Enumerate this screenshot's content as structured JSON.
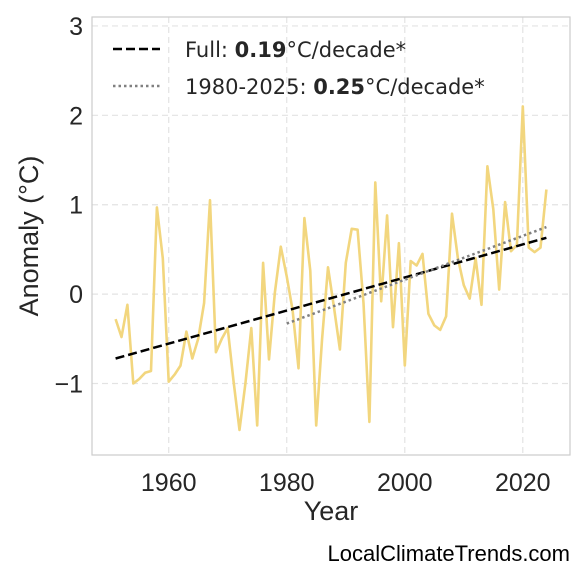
{
  "chart_data": {
    "type": "line",
    "xlabel": "Year",
    "ylabel": "Anomaly (°C)",
    "xlim": [
      1947,
      2028
    ],
    "ylim": [
      -1.8,
      3.1
    ],
    "xticks": [
      1960,
      1980,
      2000,
      2020
    ],
    "yticks": [
      3,
      2,
      1,
      0,
      -1
    ],
    "ytick_labels": [
      "3",
      "2",
      "1",
      "0",
      "−1"
    ],
    "grid": true,
    "legend_position": "top-left",
    "series": [
      {
        "kind": "data",
        "color": "#f2d67e",
        "x": [
          1951,
          1952,
          1953,
          1954,
          1955,
          1956,
          1957,
          1958,
          1959,
          1960,
          1961,
          1962,
          1963,
          1964,
          1965,
          1966,
          1967,
          1968,
          1969,
          1970,
          1971,
          1972,
          1973,
          1974,
          1975,
          1976,
          1977,
          1978,
          1979,
          1980,
          1981,
          1982,
          1983,
          1984,
          1985,
          1986,
          1987,
          1988,
          1989,
          1990,
          1991,
          1992,
          1993,
          1994,
          1995,
          1996,
          1997,
          1998,
          1999,
          2000,
          2001,
          2002,
          2003,
          2004,
          2005,
          2006,
          2007,
          2008,
          2009,
          2010,
          2011,
          2012,
          2013,
          2014,
          2015,
          2016,
          2017,
          2018,
          2019,
          2020,
          2021,
          2022,
          2023,
          2024
        ],
        "y": [
          -0.28,
          -0.48,
          -0.12,
          -1.0,
          -0.95,
          -0.88,
          -0.86,
          0.97,
          0.4,
          -0.98,
          -0.9,
          -0.8,
          -0.42,
          -0.72,
          -0.5,
          -0.1,
          1.05,
          -0.65,
          -0.5,
          -0.38,
          -0.98,
          -1.52,
          -1.0,
          -0.38,
          -1.47,
          0.35,
          -0.73,
          0.02,
          0.53,
          0.2,
          -0.18,
          -0.83,
          0.85,
          0.26,
          -1.47,
          -0.5,
          0.3,
          -0.15,
          -0.62,
          0.35,
          0.73,
          0.72,
          -0.1,
          -1.43,
          1.25,
          -0.08,
          0.88,
          -0.37,
          0.57,
          -0.8,
          0.37,
          0.32,
          0.45,
          -0.22,
          -0.35,
          -0.4,
          -0.25,
          0.9,
          0.4,
          0.1,
          -0.05,
          0.4,
          -0.12,
          1.43,
          0.95,
          0.05,
          1.03,
          0.48,
          0.55,
          2.1,
          0.52,
          0.47,
          0.52,
          1.17
        ]
      },
      {
        "name": "Full: ",
        "value_label": "0.19",
        "unit_label": "°C/decade*",
        "kind": "trend",
        "style": "dashed",
        "color": "#000000",
        "x": [
          1951,
          2024
        ],
        "y": [
          -0.72,
          0.63
        ]
      },
      {
        "name": "1980-2025: ",
        "value_label": "0.25",
        "unit_label": "°C/decade*",
        "kind": "trend",
        "style": "dotted",
        "color": "#808080",
        "x": [
          1980,
          2024
        ],
        "y": [
          -0.33,
          0.75
        ]
      }
    ]
  },
  "watermark": "LocalClimateTrends.com"
}
